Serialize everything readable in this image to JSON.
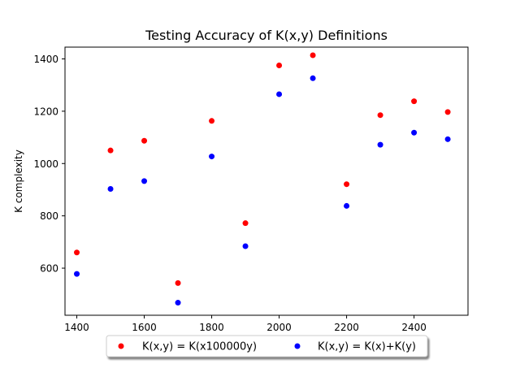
{
  "chart_data": {
    "type": "scatter",
    "title": "Testing Accuracy of K(x,y) Definitions",
    "xlabel": "",
    "ylabel": "K complexity",
    "xlim": [
      1365,
      2560
    ],
    "ylim": [
      420,
      1445
    ],
    "xticks": [
      1400,
      1600,
      1800,
      2000,
      2200,
      2400
    ],
    "yticks": [
      600,
      800,
      1000,
      1200,
      1400
    ],
    "grid": false,
    "legend_position": "bottom-center",
    "x": [
      1400,
      1500,
      1600,
      1700,
      1800,
      1900,
      2000,
      2100,
      2200,
      2300,
      2400,
      2500
    ],
    "series": [
      {
        "name": "K(x,y) = K(x100000y)",
        "color": "#ff0000",
        "values": [
          660,
          1050,
          1087,
          543,
          1163,
          772,
          1375,
          1414,
          921,
          1185,
          1238,
          1197
        ]
      },
      {
        "name": "K(x,y) = K(x)+K(y)",
        "color": "#0000ff",
        "values": [
          578,
          903,
          933,
          468,
          1027,
          684,
          1265,
          1326,
          838,
          1072,
          1118,
          1093
        ]
      }
    ]
  }
}
